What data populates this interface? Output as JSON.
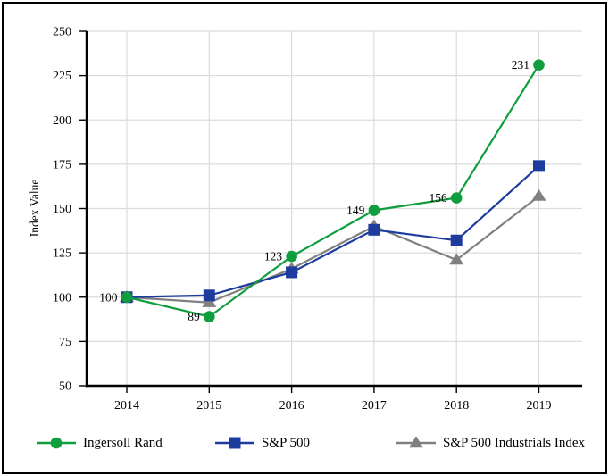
{
  "figure": {
    "background": "#ffffff",
    "border_color": "#000000"
  },
  "chart_data": {
    "type": "line",
    "title": "",
    "xlabel": "",
    "ylabel": "Index Value",
    "categories": [
      "2014",
      "2015",
      "2016",
      "2017",
      "2018",
      "2019"
    ],
    "ylim": [
      50,
      250
    ],
    "yticks": [
      50,
      75,
      100,
      125,
      150,
      175,
      200,
      225,
      250
    ],
    "grid": true,
    "gridline_color": "#dcdcdc",
    "axis_color": "#000000",
    "legend_position": "bottom",
    "series": [
      {
        "name": "Ingersoll Rand",
        "marker": "circle",
        "color": "#0f9e3e",
        "values": [
          100,
          89,
          123,
          149,
          156,
          231
        ],
        "data_labels": [
          "100",
          "89",
          "123",
          "149",
          "156",
          "231"
        ]
      },
      {
        "name": "S&P 500",
        "marker": "square",
        "color": "#1e3c9e",
        "values": [
          100,
          101,
          114,
          138,
          132,
          174
        ]
      },
      {
        "name": "S&P 500 Industrials Index",
        "marker": "triangle",
        "color": "#808080",
        "values": [
          100,
          97,
          116,
          140,
          121,
          157
        ]
      }
    ]
  }
}
